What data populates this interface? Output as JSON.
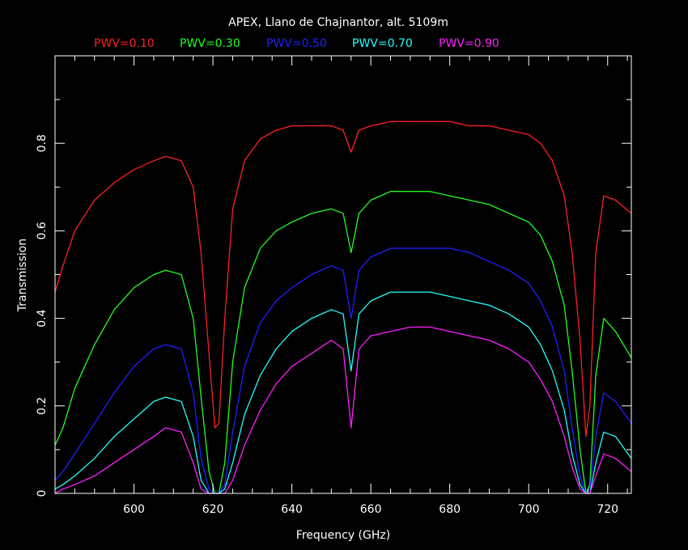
{
  "chart_data": {
    "type": "line",
    "title": "APEX, Llano de Chajnantor, alt. 5109m",
    "xlabel": "Frequency (GHz)",
    "ylabel": "Transmission",
    "xlim": [
      580,
      726
    ],
    "ylim": [
      0,
      1.0
    ],
    "x_ticks": [
      600,
      620,
      640,
      660,
      680,
      700,
      720
    ],
    "y_ticks": [
      0,
      0.2,
      0.4,
      0.6,
      0.8
    ],
    "y_tick_labels": [
      "0",
      "0.2",
      "0.4",
      "0.6",
      "0.8"
    ],
    "grid": false,
    "legend": "top",
    "series": [
      {
        "name": "PWV=0.10",
        "color": "#ff2020",
        "x": [
          580,
          582,
          585,
          590,
          595,
          600,
          605,
          608,
          612,
          615,
          617,
          619,
          620.5,
          621.5,
          623,
          625,
          628,
          632,
          636,
          640,
          645,
          650,
          653,
          655,
          657,
          660,
          665,
          670,
          675,
          680,
          685,
          690,
          695,
          700,
          703,
          706,
          709,
          711,
          713,
          714.5,
          715.5,
          717,
          719,
          722,
          726
        ],
        "y": [
          0.46,
          0.52,
          0.6,
          0.67,
          0.71,
          0.74,
          0.76,
          0.77,
          0.76,
          0.7,
          0.55,
          0.32,
          0.15,
          0.16,
          0.4,
          0.65,
          0.76,
          0.81,
          0.83,
          0.84,
          0.84,
          0.84,
          0.83,
          0.78,
          0.83,
          0.84,
          0.85,
          0.85,
          0.85,
          0.85,
          0.84,
          0.84,
          0.83,
          0.82,
          0.8,
          0.76,
          0.68,
          0.55,
          0.35,
          0.13,
          0.2,
          0.55,
          0.68,
          0.67,
          0.64
        ]
      },
      {
        "name": "PWV=0.30",
        "color": "#20ff20",
        "x": [
          580,
          582,
          585,
          590,
          595,
          600,
          605,
          608,
          612,
          615,
          617,
          619,
          620.5,
          621.5,
          623,
          625,
          628,
          632,
          636,
          640,
          645,
          650,
          653,
          655,
          657,
          660,
          665,
          670,
          675,
          680,
          685,
          690,
          695,
          700,
          703,
          706,
          709,
          711,
          713,
          714.5,
          715.5,
          717,
          719,
          722,
          726
        ],
        "y": [
          0.11,
          0.15,
          0.24,
          0.34,
          0.42,
          0.47,
          0.5,
          0.51,
          0.5,
          0.4,
          0.22,
          0.05,
          0.0,
          0.0,
          0.07,
          0.3,
          0.47,
          0.56,
          0.6,
          0.62,
          0.64,
          0.65,
          0.64,
          0.55,
          0.64,
          0.67,
          0.69,
          0.69,
          0.69,
          0.68,
          0.67,
          0.66,
          0.64,
          0.62,
          0.59,
          0.53,
          0.43,
          0.28,
          0.1,
          0.0,
          0.02,
          0.27,
          0.4,
          0.37,
          0.31
        ]
      },
      {
        "name": "PWV=0.50",
        "color": "#2020ff",
        "x": [
          580,
          582,
          585,
          590,
          595,
          600,
          605,
          608,
          612,
          615,
          617,
          619,
          620.5,
          621.5,
          623,
          625,
          628,
          632,
          636,
          640,
          645,
          650,
          653,
          655,
          657,
          660,
          665,
          670,
          675,
          680,
          685,
          690,
          695,
          700,
          703,
          706,
          709,
          711,
          713,
          714.5,
          715.5,
          717,
          719,
          722,
          726
        ],
        "y": [
          0.03,
          0.05,
          0.09,
          0.16,
          0.23,
          0.29,
          0.33,
          0.34,
          0.33,
          0.23,
          0.08,
          0.01,
          0.0,
          0.0,
          0.02,
          0.14,
          0.29,
          0.39,
          0.44,
          0.47,
          0.5,
          0.52,
          0.51,
          0.4,
          0.51,
          0.54,
          0.56,
          0.56,
          0.56,
          0.56,
          0.55,
          0.53,
          0.51,
          0.48,
          0.44,
          0.38,
          0.28,
          0.15,
          0.04,
          0.0,
          0.01,
          0.13,
          0.23,
          0.21,
          0.16
        ]
      },
      {
        "name": "PWV=0.70",
        "color": "#20ffff",
        "x": [
          580,
          582,
          585,
          590,
          595,
          600,
          605,
          608,
          612,
          615,
          617,
          619,
          620.5,
          621.5,
          623,
          625,
          628,
          632,
          636,
          640,
          645,
          650,
          653,
          655,
          657,
          660,
          665,
          670,
          675,
          680,
          685,
          690,
          695,
          700,
          703,
          706,
          709,
          711,
          713,
          714.5,
          715.5,
          717,
          719,
          722,
          726
        ],
        "y": [
          0.01,
          0.02,
          0.04,
          0.08,
          0.13,
          0.17,
          0.21,
          0.22,
          0.21,
          0.13,
          0.03,
          0.0,
          0.0,
          0.0,
          0.01,
          0.07,
          0.18,
          0.27,
          0.33,
          0.37,
          0.4,
          0.42,
          0.41,
          0.28,
          0.41,
          0.44,
          0.46,
          0.46,
          0.46,
          0.45,
          0.44,
          0.43,
          0.41,
          0.38,
          0.34,
          0.28,
          0.19,
          0.09,
          0.02,
          0.0,
          0.0,
          0.07,
          0.14,
          0.13,
          0.08
        ]
      },
      {
        "name": "PWV=0.90",
        "color": "#ff20ff",
        "x": [
          580,
          582,
          585,
          590,
          595,
          600,
          605,
          608,
          612,
          615,
          617,
          619,
          620.5,
          621.5,
          623,
          625,
          628,
          632,
          636,
          640,
          645,
          650,
          653,
          655,
          657,
          660,
          665,
          670,
          675,
          680,
          685,
          690,
          695,
          700,
          703,
          706,
          709,
          711,
          713,
          714.5,
          715.5,
          717,
          719,
          722,
          726
        ],
        "y": [
          0.0,
          0.01,
          0.02,
          0.04,
          0.07,
          0.1,
          0.13,
          0.15,
          0.14,
          0.07,
          0.01,
          0.0,
          0.0,
          0.0,
          0.0,
          0.03,
          0.11,
          0.19,
          0.25,
          0.29,
          0.32,
          0.35,
          0.33,
          0.15,
          0.33,
          0.36,
          0.37,
          0.38,
          0.38,
          0.37,
          0.36,
          0.35,
          0.33,
          0.3,
          0.26,
          0.21,
          0.13,
          0.06,
          0.01,
          0.0,
          0.0,
          0.04,
          0.09,
          0.08,
          0.05
        ]
      }
    ]
  }
}
